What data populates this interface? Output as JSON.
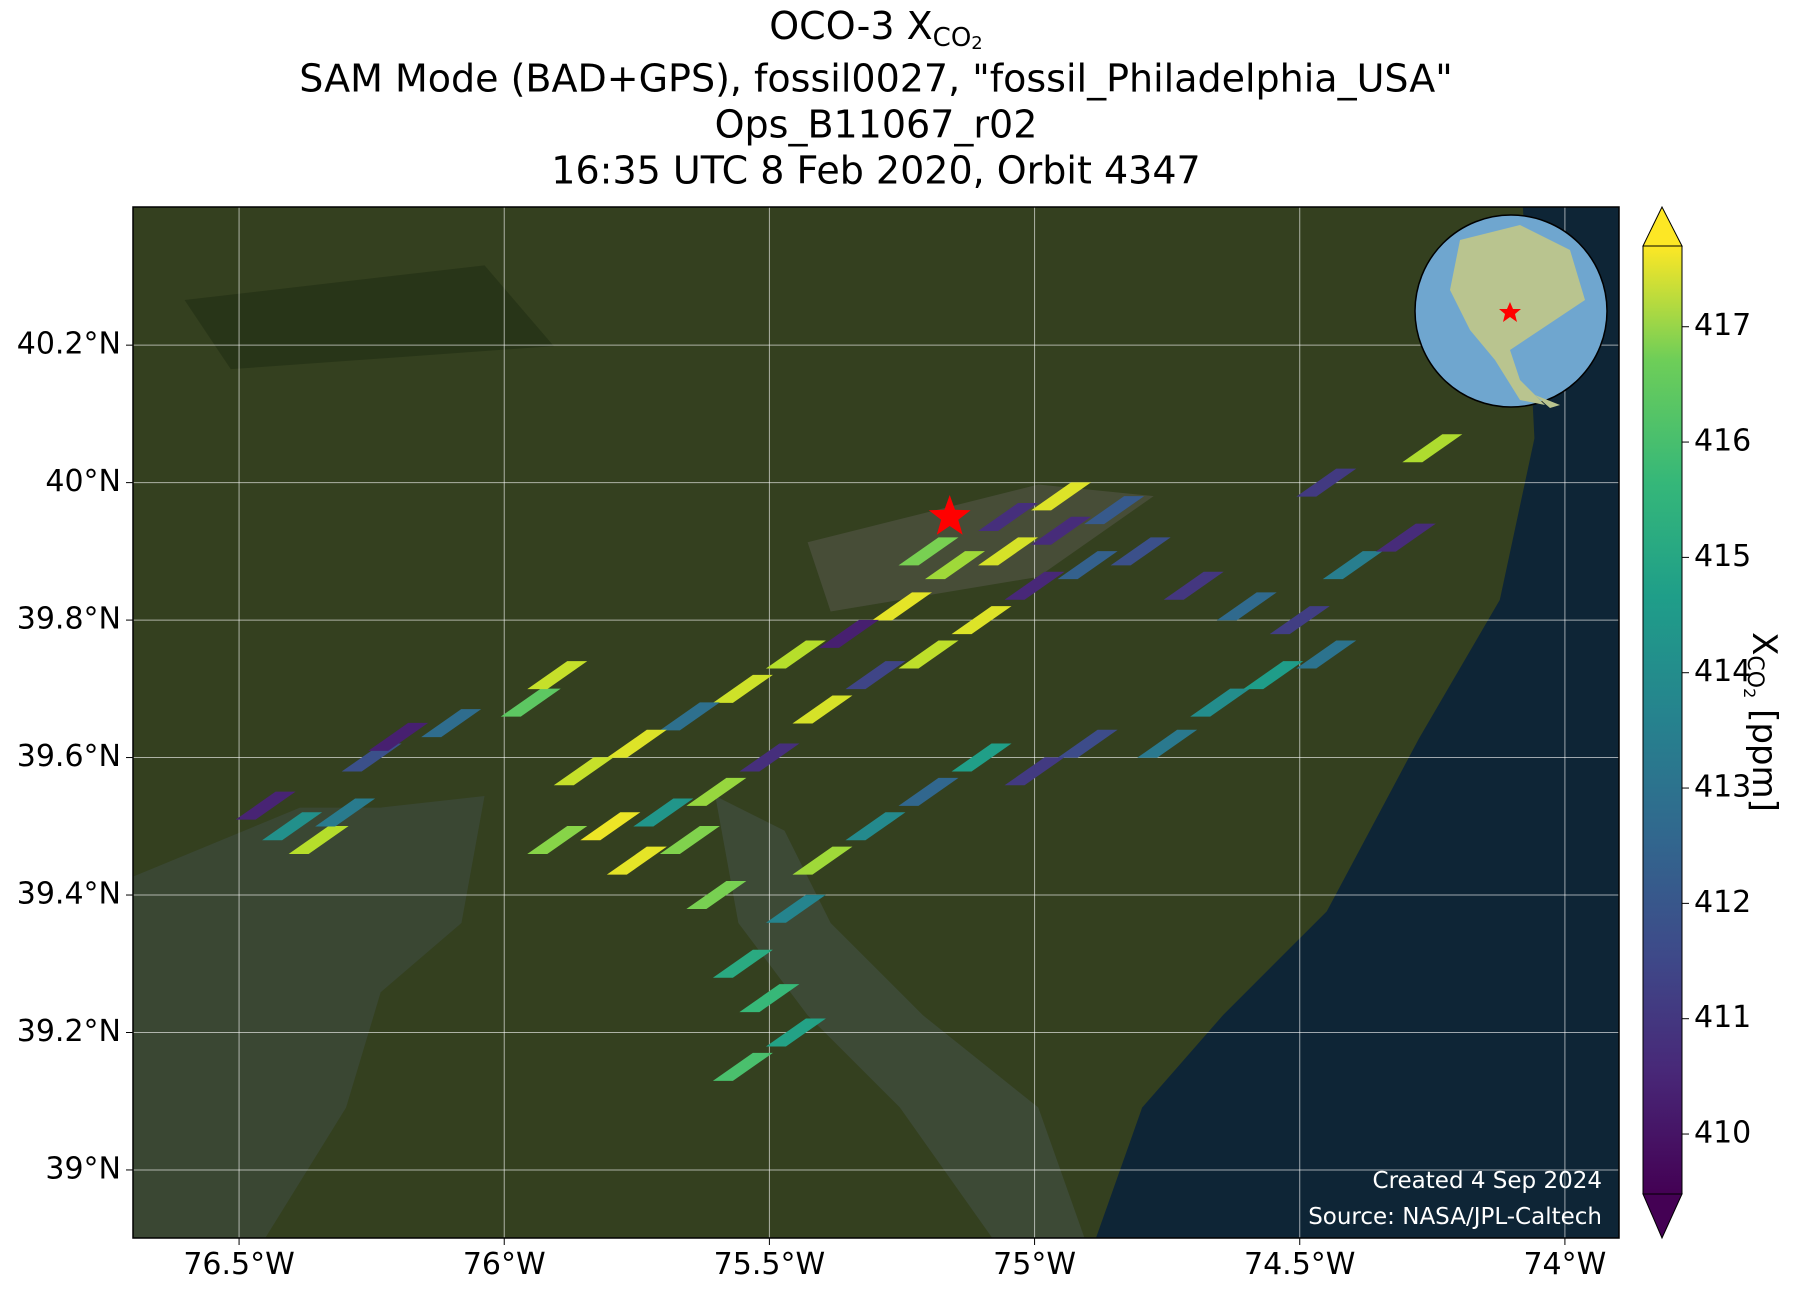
{
  "chart_data": {
    "type": "scatter",
    "title": {
      "text": "OCO-3 X",
      "sub": "CO",
      "subsub": "2"
    },
    "subtitles": [
      "SAM Mode (BAD+GPS), fossil0027, \"fossil_Philadelphia_USA\"",
      "Ops_B11067_r02",
      "16:35 UTC 8 Feb 2020, Orbit 4347"
    ],
    "xlim": [
      -76.7,
      -73.898
    ],
    "ylim": [
      38.901,
      40.401
    ],
    "xticks": [
      {
        "value": -76.5,
        "label": "76.5°W"
      },
      {
        "value": -76,
        "label": "76°W"
      },
      {
        "value": -75.5,
        "label": "75.5°W"
      },
      {
        "value": -75,
        "label": "75°W"
      },
      {
        "value": -74.5,
        "label": "74.5°W"
      },
      {
        "value": -74,
        "label": "74°W"
      }
    ],
    "yticks": [
      {
        "value": 39,
        "label": "39°N"
      },
      {
        "value": 39.2,
        "label": "39.2°N"
      },
      {
        "value": 39.4,
        "label": "39.4°N"
      },
      {
        "value": 39.6,
        "label": "39.6°N"
      },
      {
        "value": 39.8,
        "label": "39.8°N"
      },
      {
        "value": 40,
        "label": "40°N"
      },
      {
        "value": 40.2,
        "label": "40.2°N"
      }
    ],
    "grid": true,
    "x": [
      -75.15,
      -75.05,
      -74.95,
      -74.85,
      -75.25,
      -75.35,
      -75.45,
      -75.55,
      -75.65,
      -75.75,
      -75.85,
      -75.9,
      -75.8,
      -75.7,
      -75.6,
      -75.5,
      -75.4,
      -75.3,
      -75.2,
      -75.1,
      -75.0,
      -74.9,
      -74.8,
      -74.7,
      -74.6,
      -74.5,
      -74.4,
      -74.3,
      -74.75,
      -74.65,
      -74.55,
      -74.45,
      -75.3,
      -75.2,
      -75.1,
      -75.0,
      -74.9,
      -75.55,
      -75.5,
      -75.45,
      -75.55,
      -75.6,
      -76.45,
      -76.4,
      -76.35,
      -76.3,
      -76.25,
      -76.2,
      -76.1,
      -75.95,
      -75.9,
      -74.25,
      -74.45,
      -75.2,
      -75.4,
      -75.45,
      -74.95,
      -75.05,
      -75.75,
      -75.65
    ],
    "y": [
      39.88,
      39.9,
      39.93,
      39.96,
      39.82,
      39.78,
      39.75,
      39.7,
      39.66,
      39.62,
      39.58,
      39.48,
      39.5,
      39.52,
      39.55,
      39.6,
      39.67,
      39.72,
      39.75,
      39.8,
      39.85,
      39.88,
      39.9,
      39.85,
      39.82,
      39.8,
      39.88,
      39.92,
      39.62,
      39.68,
      39.72,
      39.75,
      39.5,
      39.55,
      39.6,
      39.58,
      39.62,
      39.3,
      39.25,
      39.2,
      39.15,
      39.4,
      39.53,
      39.5,
      39.48,
      39.52,
      39.6,
      39.63,
      39.65,
      39.68,
      39.72,
      40.05,
      40.0,
      39.9,
      39.45,
      39.38,
      39.98,
      39.95,
      39.45,
      39.48
    ],
    "values": [
      416.5,
      417.2,
      410.5,
      411.8,
      417.4,
      410.2,
      416.8,
      417.1,
      412.5,
      417.3,
      417.0,
      416.2,
      417.5,
      413.8,
      416.4,
      410.6,
      417.2,
      411.2,
      416.9,
      417.3,
      410.4,
      412.0,
      411.5,
      410.8,
      412.3,
      411.0,
      413.0,
      410.5,
      412.8,
      413.5,
      414.0,
      412.6,
      413.4,
      412.2,
      414.1,
      410.9,
      411.4,
      414.5,
      415.0,
      414.2,
      415.3,
      416.0,
      410.3,
      413.6,
      416.8,
      412.9,
      411.5,
      410.2,
      412.4,
      415.6,
      417.0,
      416.7,
      410.9,
      416.0,
      416.5,
      413.2,
      417.3,
      410.6,
      417.4,
      416.1
    ],
    "clim": [
      409.48,
      417.7
    ],
    "cticks": [
      410,
      411,
      412,
      413,
      414,
      415,
      416,
      417
    ],
    "colorbar_label": {
      "text": "X",
      "sub": "CO",
      "subsub": "2",
      "unit": " [ppm]"
    },
    "target": {
      "x": -75.16,
      "y": 39.95
    },
    "annotations": [
      "Created 4 Sep 2024",
      "Source: NASA/JPL-Caltech"
    ]
  }
}
